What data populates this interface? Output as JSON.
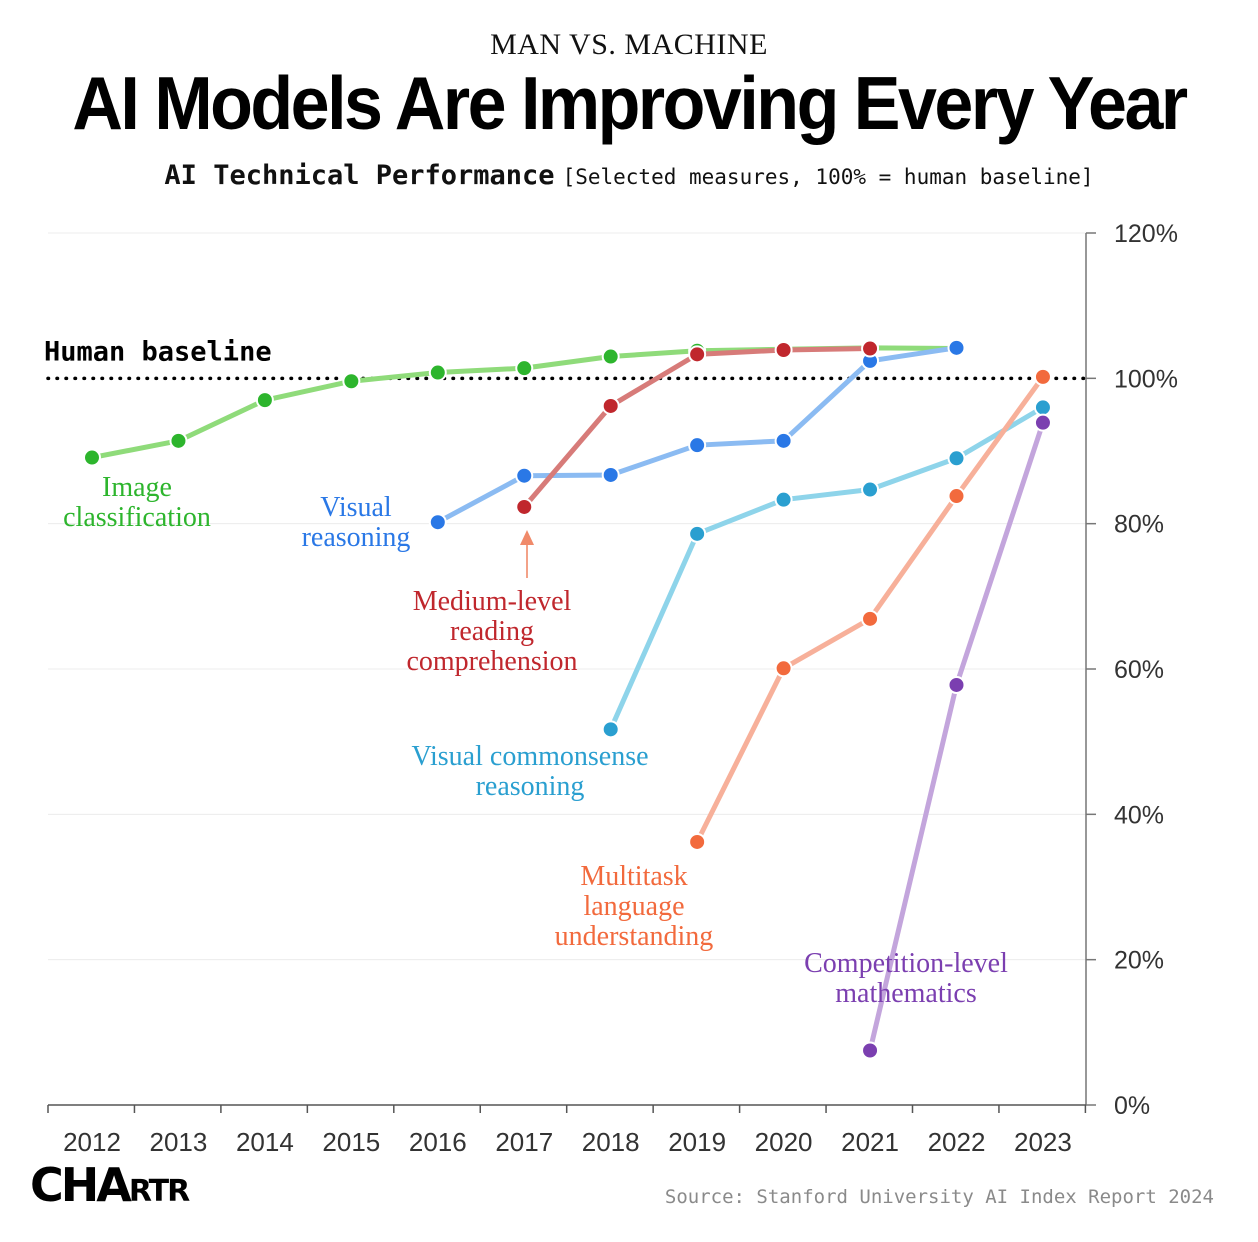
{
  "header": {
    "kicker": "MAN VS. MACHINE",
    "title": "AI Models Are Improving Every Year",
    "subtitle": "AI Technical Performance",
    "subtitle_note": "[Selected measures, 100% = human baseline]"
  },
  "footer": {
    "logo_main": "CHA",
    "logo_small": "RTR",
    "source": "Source: Stanford University AI Index Report 2024"
  },
  "chart_data": {
    "type": "line",
    "x": [
      "2012",
      "2013",
      "2014",
      "2015",
      "2016",
      "2017",
      "2018",
      "2019",
      "2020",
      "2021",
      "2022",
      "2023"
    ],
    "ylim": [
      0,
      120
    ],
    "yticks": [
      0,
      20,
      40,
      60,
      80,
      100,
      120
    ],
    "ytick_labels": [
      "0%",
      "20%",
      "40%",
      "60%",
      "80%",
      "100%",
      "120%"
    ],
    "grid": true,
    "baseline": {
      "value": 100,
      "label": "Human baseline"
    },
    "series": [
      {
        "name": "Image classification",
        "color": "#2db52d",
        "line_color": "#8fdb7a",
        "points": [
          [
            2012,
            89.1
          ],
          [
            2013,
            91.4
          ],
          [
            2014,
            97.0
          ],
          [
            2015,
            99.6
          ],
          [
            2016,
            100.8
          ],
          [
            2017,
            101.4
          ],
          [
            2018,
            103.0
          ],
          [
            2019,
            103.8
          ],
          [
            2020,
            104.0
          ],
          [
            2021,
            104.2
          ],
          [
            2022,
            104.1
          ]
        ]
      },
      {
        "name": "Visual reasoning",
        "color": "#2a78e6",
        "line_color": "#8bbbf2",
        "points": [
          [
            2016,
            80.2
          ],
          [
            2017,
            86.6
          ],
          [
            2018,
            86.7
          ],
          [
            2019,
            90.8
          ],
          [
            2020,
            91.4
          ],
          [
            2021,
            102.4
          ],
          [
            2022,
            104.2
          ]
        ]
      },
      {
        "name": "Medium-level reading comprehension",
        "color": "#c0272d",
        "line_color": "#d77b79",
        "points": [
          [
            2017,
            82.3
          ],
          [
            2018,
            96.2
          ],
          [
            2019,
            103.3
          ],
          [
            2020,
            103.9
          ],
          [
            2021,
            104.1
          ]
        ]
      },
      {
        "name": "Visual commonsense reasoning",
        "color": "#2a9fd0",
        "line_color": "#8ed4ea",
        "points": [
          [
            2018,
            51.7
          ],
          [
            2019,
            78.6
          ],
          [
            2020,
            83.3
          ],
          [
            2021,
            84.7
          ],
          [
            2022,
            89.0
          ],
          [
            2023,
            96.0
          ]
        ]
      },
      {
        "name": "Multitask language understanding",
        "color": "#f26a3d",
        "line_color": "#f7b09a",
        "points": [
          [
            2019,
            36.2
          ],
          [
            2020,
            60.1
          ],
          [
            2021,
            66.9
          ],
          [
            2022,
            83.8
          ],
          [
            2023,
            100.2
          ]
        ]
      },
      {
        "name": "Competition-level mathematics",
        "color": "#7b3fb0",
        "line_color": "#c3a5dc",
        "points": [
          [
            2021,
            7.5
          ],
          [
            2022,
            57.8
          ],
          [
            2023,
            93.9
          ]
        ]
      }
    ],
    "labels": [
      {
        "series": 0,
        "lines": [
          "Image",
          "classification"
        ]
      },
      {
        "series": 1,
        "lines": [
          "Visual",
          "reasoning"
        ]
      },
      {
        "series": 2,
        "lines": [
          "Medium-level",
          "reading",
          "comprehension"
        ]
      },
      {
        "series": 3,
        "lines": [
          "Visual commonsense",
          "reasoning"
        ]
      },
      {
        "series": 4,
        "lines": [
          "Multitask",
          "language",
          "understanding"
        ]
      },
      {
        "series": 5,
        "lines": [
          "Competition-level",
          "mathematics"
        ]
      }
    ]
  }
}
